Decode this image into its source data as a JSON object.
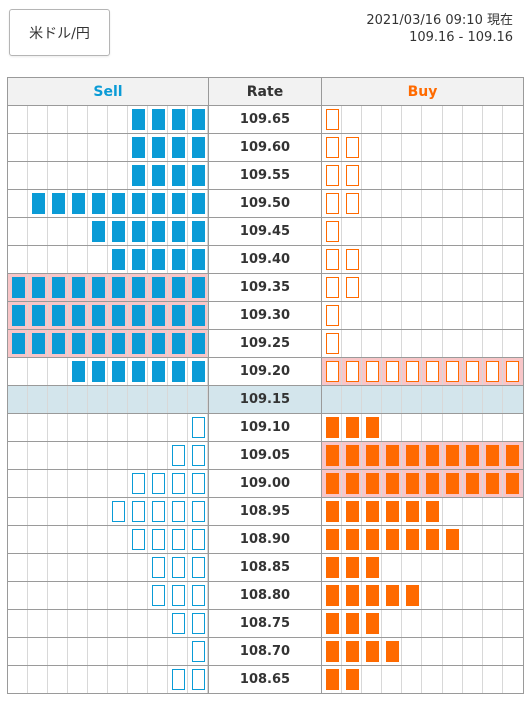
{
  "pair_label": "米ドル/円",
  "timestamp": "2021/03/16 09:10 現在",
  "spread": "109.16 - 109.16",
  "headers": {
    "sell": "Sell",
    "rate": "Rate",
    "buy": "Buy"
  },
  "colors": {
    "sell": "#0a9bd6",
    "buy": "#ff6a00",
    "highlight": "#f8c6c8",
    "current_row": "#d3e5ec"
  },
  "rows": [
    {
      "rate": "109.65",
      "sell": {
        "filled": 4,
        "outline": 0
      },
      "buy": {
        "filled": 0,
        "outline": 1
      }
    },
    {
      "rate": "109.60",
      "sell": {
        "filled": 4,
        "outline": 0
      },
      "buy": {
        "filled": 0,
        "outline": 2
      }
    },
    {
      "rate": "109.55",
      "sell": {
        "filled": 4,
        "outline": 0
      },
      "buy": {
        "filled": 0,
        "outline": 2
      }
    },
    {
      "rate": "109.50",
      "sell": {
        "filled": 9,
        "outline": 0
      },
      "buy": {
        "filled": 0,
        "outline": 2
      }
    },
    {
      "rate": "109.45",
      "sell": {
        "filled": 6,
        "outline": 0
      },
      "buy": {
        "filled": 0,
        "outline": 1
      }
    },
    {
      "rate": "109.40",
      "sell": {
        "filled": 5,
        "outline": 0
      },
      "buy": {
        "filled": 0,
        "outline": 2
      }
    },
    {
      "rate": "109.35",
      "sell": {
        "filled": 10,
        "outline": 0,
        "highlight": true
      },
      "buy": {
        "filled": 0,
        "outline": 2
      }
    },
    {
      "rate": "109.30",
      "sell": {
        "filled": 10,
        "outline": 0,
        "highlight": true
      },
      "buy": {
        "filled": 0,
        "outline": 1
      }
    },
    {
      "rate": "109.25",
      "sell": {
        "filled": 10,
        "outline": 0,
        "highlight": true
      },
      "buy": {
        "filled": 0,
        "outline": 1
      }
    },
    {
      "rate": "109.20",
      "sell": {
        "filled": 7,
        "outline": 0
      },
      "buy": {
        "filled": 0,
        "outline": 10,
        "highlight": true
      }
    },
    {
      "rate": "109.15",
      "current": true,
      "sell": {
        "filled": 0,
        "outline": 0
      },
      "buy": {
        "filled": 0,
        "outline": 0
      }
    },
    {
      "rate": "109.10",
      "sell": {
        "filled": 0,
        "outline": 1
      },
      "buy": {
        "filled": 3,
        "outline": 0
      }
    },
    {
      "rate": "109.05",
      "sell": {
        "filled": 0,
        "outline": 2
      },
      "buy": {
        "filled": 10,
        "outline": 0,
        "highlight": true
      }
    },
    {
      "rate": "109.00",
      "sell": {
        "filled": 0,
        "outline": 4
      },
      "buy": {
        "filled": 10,
        "outline": 0,
        "highlight": true
      }
    },
    {
      "rate": "108.95",
      "sell": {
        "filled": 0,
        "outline": 5
      },
      "buy": {
        "filled": 6,
        "outline": 0
      }
    },
    {
      "rate": "108.90",
      "sell": {
        "filled": 0,
        "outline": 4
      },
      "buy": {
        "filled": 7,
        "outline": 0
      }
    },
    {
      "rate": "108.85",
      "sell": {
        "filled": 0,
        "outline": 3
      },
      "buy": {
        "filled": 3,
        "outline": 0
      }
    },
    {
      "rate": "108.80",
      "sell": {
        "filled": 0,
        "outline": 3
      },
      "buy": {
        "filled": 5,
        "outline": 0
      }
    },
    {
      "rate": "108.75",
      "sell": {
        "filled": 0,
        "outline": 2
      },
      "buy": {
        "filled": 3,
        "outline": 0
      }
    },
    {
      "rate": "108.70",
      "sell": {
        "filled": 0,
        "outline": 1
      },
      "buy": {
        "filled": 4,
        "outline": 0
      }
    },
    {
      "rate": "108.65",
      "sell": {
        "filled": 0,
        "outline": 2
      },
      "buy": {
        "filled": 2,
        "outline": 0
      }
    }
  ]
}
